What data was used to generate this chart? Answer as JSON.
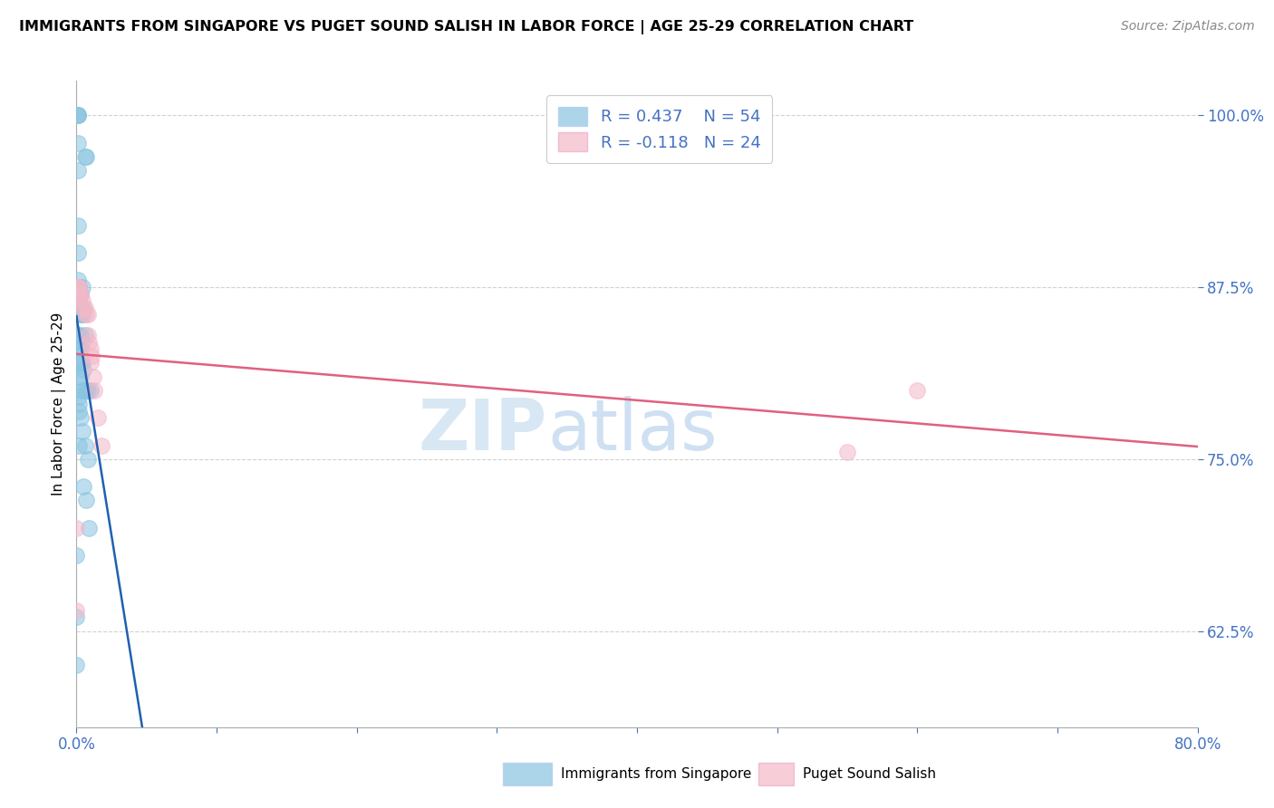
{
  "title": "IMMIGRANTS FROM SINGAPORE VS PUGET SOUND SALISH IN LABOR FORCE | AGE 25-29 CORRELATION CHART",
  "source": "Source: ZipAtlas.com",
  "ylabel": "In Labor Force | Age 25-29",
  "xlim": [
    0.0,
    0.8
  ],
  "ylim": [
    0.555,
    1.025
  ],
  "xtick_left": 0.0,
  "xtick_right": 0.8,
  "xtick_left_label": "0.0%",
  "xtick_right_label": "80.0%",
  "yticks": [
    0.625,
    0.75,
    0.875,
    1.0
  ],
  "yticklabels": [
    "62.5%",
    "75.0%",
    "87.5%",
    "100.0%"
  ],
  "legend_r1": "R = 0.437",
  "legend_n1": "N = 54",
  "legend_r2": "R = -0.118",
  "legend_n2": "N = 24",
  "blue_color": "#89c4e1",
  "pink_color": "#f4b8c8",
  "blue_line_color": "#2060b0",
  "pink_line_color": "#e06080",
  "axis_label_color": "#4472c4",
  "watermark_zip_color": "#c8ddf0",
  "watermark_atlas_color": "#a8c8e8",
  "legend_label_color": "#4472c4",
  "singapore_x": [
    0.0,
    0.0,
    0.0,
    0.001,
    0.001,
    0.001,
    0.001,
    0.001,
    0.001,
    0.001,
    0.001,
    0.001,
    0.001,
    0.002,
    0.002,
    0.002,
    0.002,
    0.002,
    0.002,
    0.002,
    0.002,
    0.002,
    0.002,
    0.002,
    0.002,
    0.003,
    0.003,
    0.003,
    0.003,
    0.003,
    0.003,
    0.003,
    0.003,
    0.003,
    0.004,
    0.004,
    0.004,
    0.004,
    0.004,
    0.004,
    0.005,
    0.005,
    0.005,
    0.005,
    0.006,
    0.006,
    0.006,
    0.007,
    0.007,
    0.007,
    0.008,
    0.008,
    0.009,
    0.01
  ],
  "singapore_y": [
    0.6,
    0.635,
    0.68,
    1.0,
    1.0,
    1.0,
    0.98,
    0.96,
    0.92,
    0.9,
    0.88,
    0.875,
    0.86,
    0.875,
    0.875,
    0.86,
    0.84,
    0.835,
    0.83,
    0.82,
    0.81,
    0.795,
    0.79,
    0.785,
    0.76,
    0.87,
    0.87,
    0.855,
    0.855,
    0.84,
    0.83,
    0.82,
    0.81,
    0.78,
    0.875,
    0.86,
    0.835,
    0.82,
    0.8,
    0.77,
    0.855,
    0.815,
    0.8,
    0.73,
    0.97,
    0.84,
    0.76,
    0.97,
    0.8,
    0.72,
    0.8,
    0.75,
    0.7,
    0.8
  ],
  "salish_x": [
    0.0,
    0.0,
    0.001,
    0.001,
    0.002,
    0.002,
    0.003,
    0.003,
    0.004,
    0.005,
    0.006,
    0.007,
    0.008,
    0.008,
    0.009,
    0.01,
    0.01,
    0.011,
    0.012,
    0.013,
    0.015,
    0.018,
    0.55,
    0.6
  ],
  "salish_y": [
    0.7,
    0.64,
    0.875,
    0.875,
    0.875,
    0.87,
    0.87,
    0.87,
    0.865,
    0.86,
    0.86,
    0.855,
    0.855,
    0.84,
    0.835,
    0.83,
    0.82,
    0.825,
    0.81,
    0.8,
    0.78,
    0.76,
    0.755,
    0.8
  ]
}
